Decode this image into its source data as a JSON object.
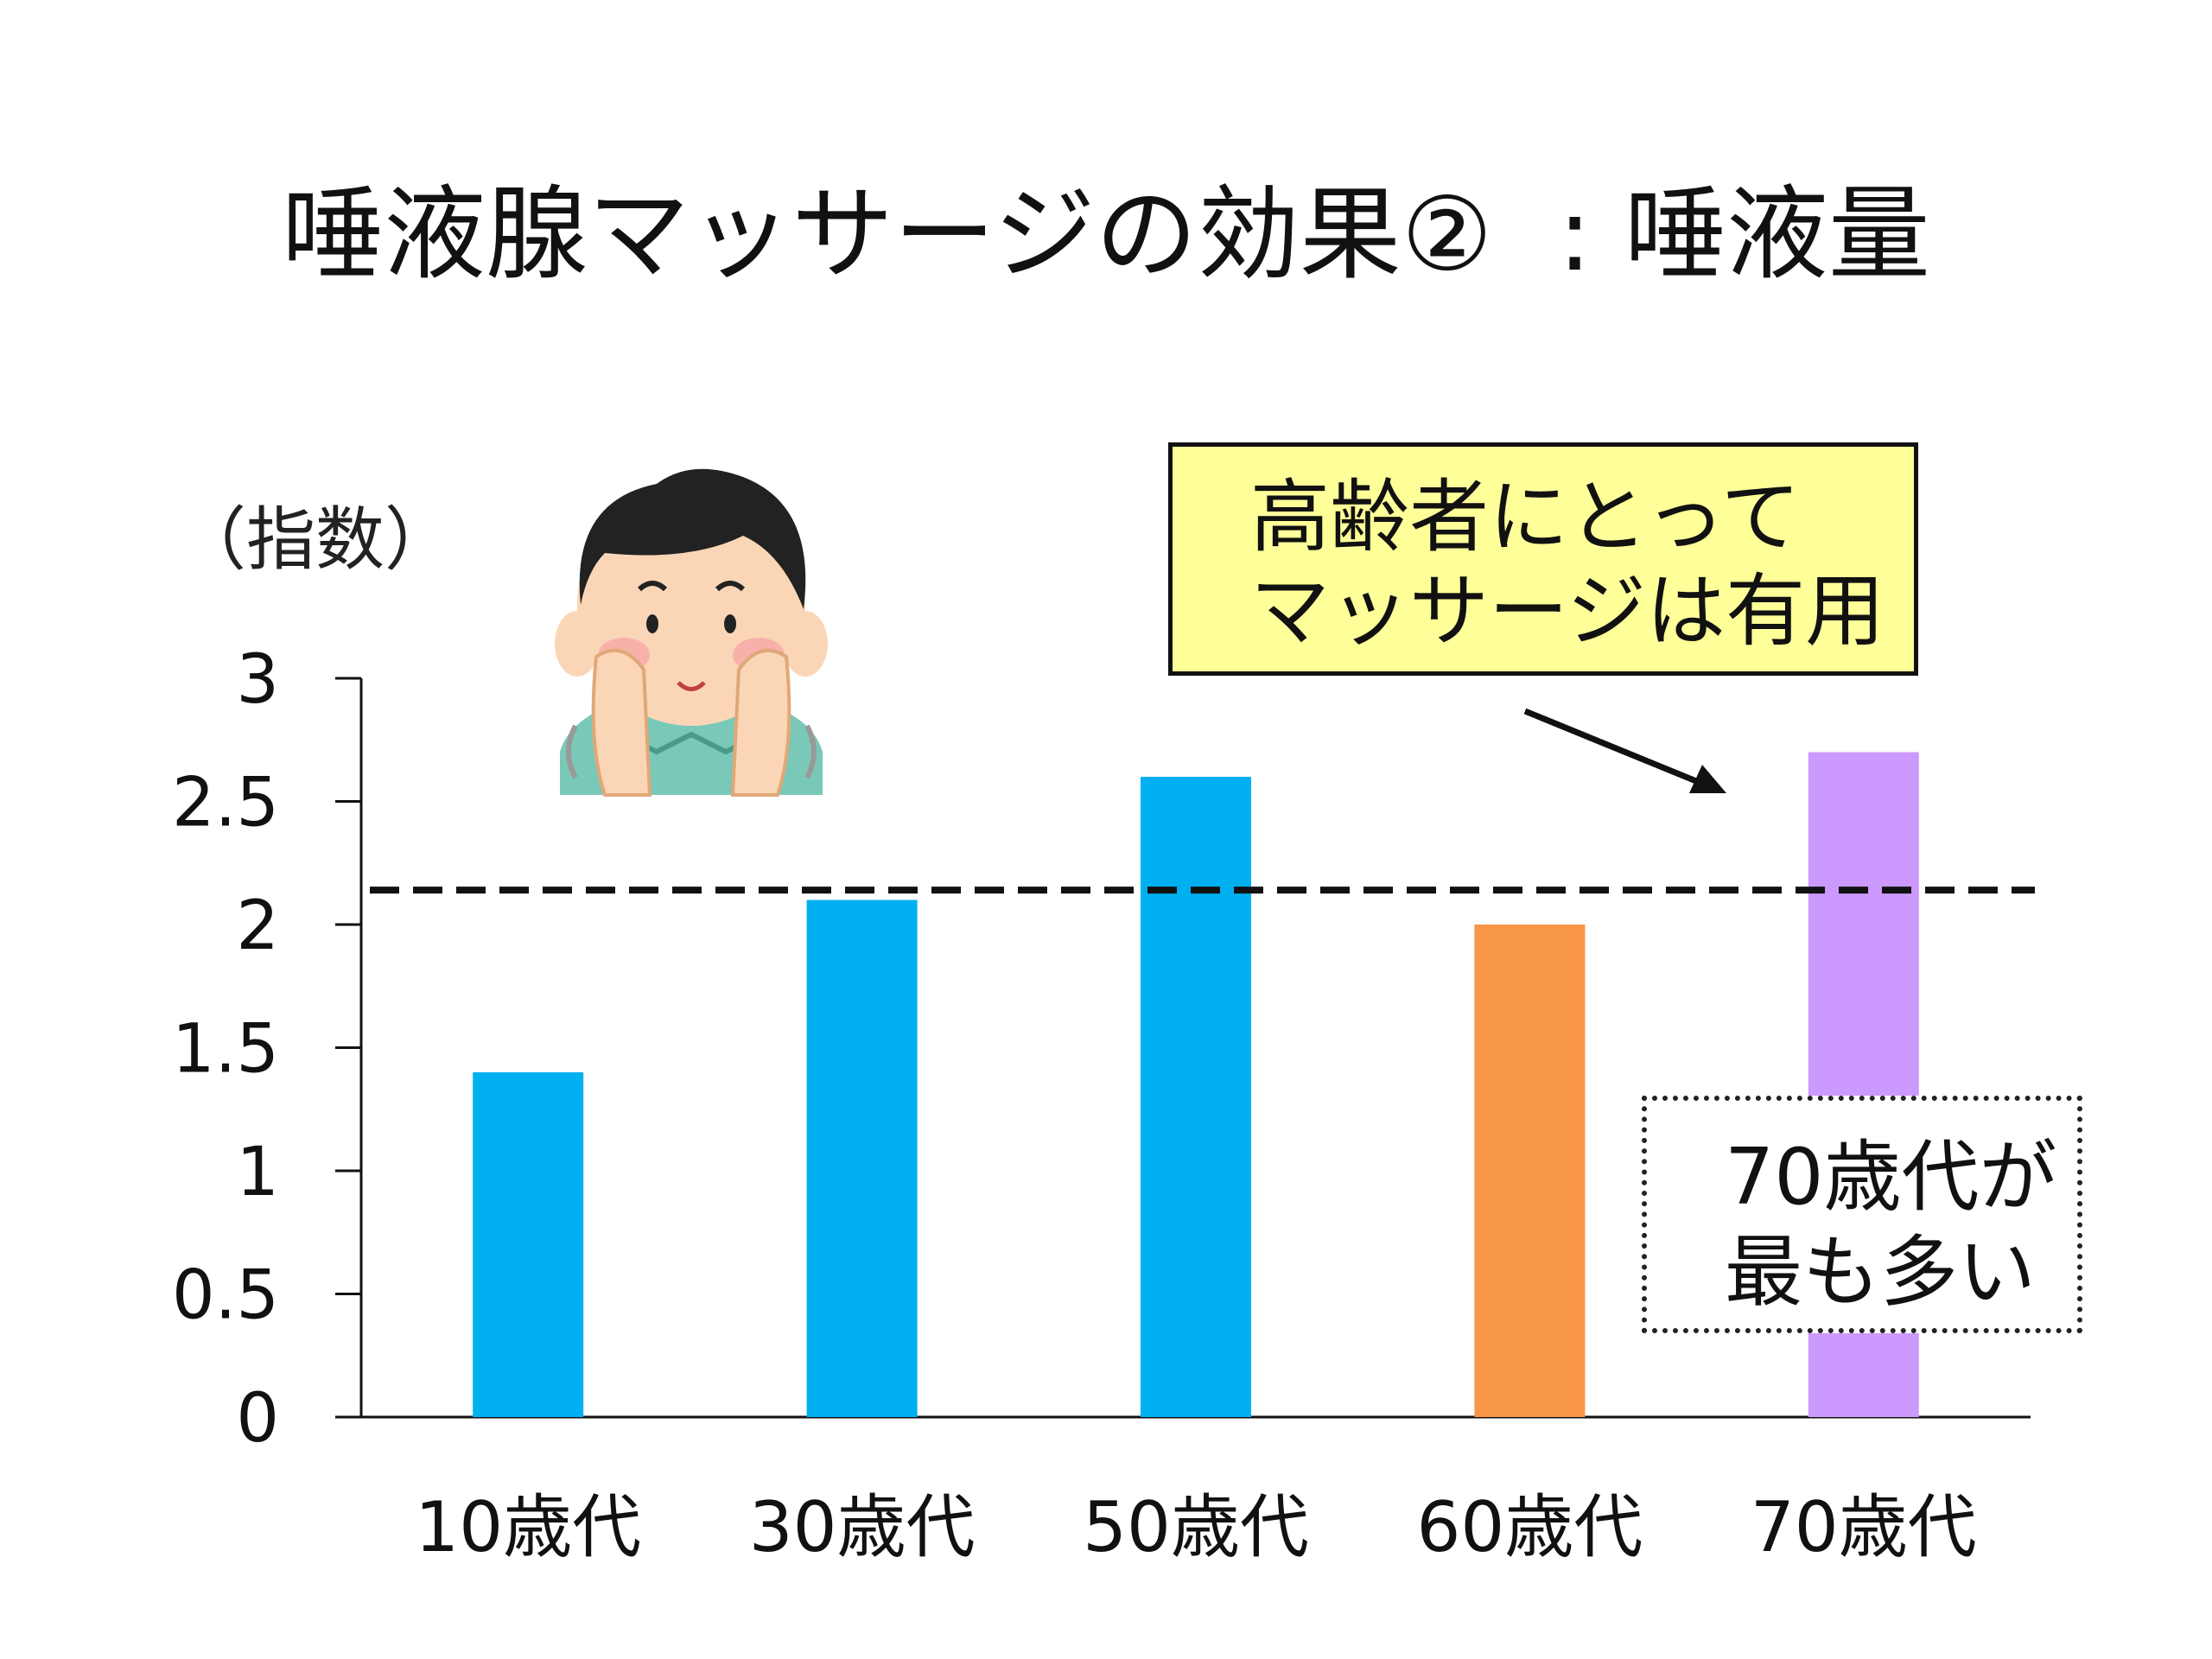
{
  "title": "唾液腺マッサージの効果②  : 唾液量",
  "y_unit": "（指数）",
  "callout": {
    "line1": "高齢者にとって",
    "line2": "マッサージは有用"
  },
  "note": {
    "line1": "70歳代が",
    "line2": "最も多い"
  },
  "chart_data": {
    "type": "bar",
    "categories": [
      "10歳代",
      "30歳代",
      "50歳代",
      "60歳代",
      "70歳代"
    ],
    "values": [
      1.4,
      2.1,
      2.6,
      2.0,
      2.7
    ],
    "bar_colors": [
      "#00b0f0",
      "#00b0f0",
      "#00b0f0",
      "#f79646",
      "#cc99ff"
    ],
    "ylim": [
      0,
      3
    ],
    "yticks": [
      "0",
      "0.5",
      "1",
      "1.5",
      "2",
      "2.5",
      "3"
    ],
    "reference_line": {
      "value": 2.14,
      "style": "dashed"
    },
    "xlabel": "",
    "ylabel": "",
    "grid": false
  },
  "colors": {
    "callout_bg": "#ffff99",
    "axis": "#111111"
  },
  "icons": {
    "illustration": "boy-massaging-cheeks-icon",
    "arrow": "arrow-icon"
  }
}
